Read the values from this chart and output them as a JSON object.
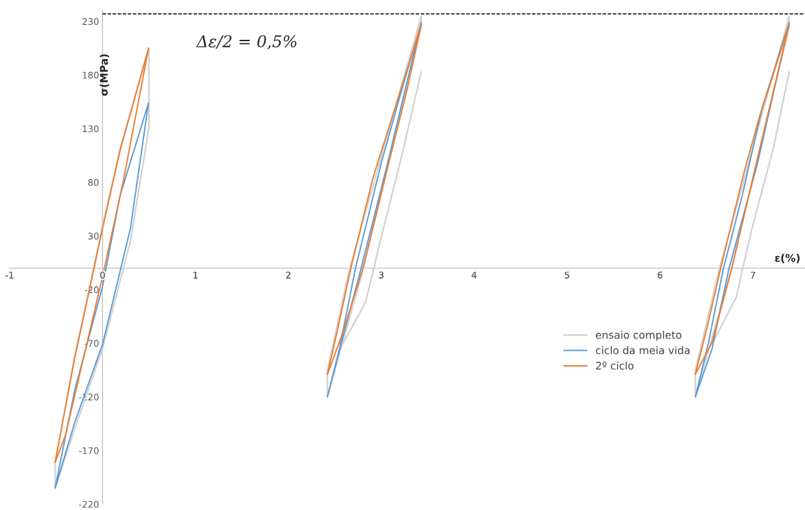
{
  "chart_data": {
    "type": "line",
    "xlabel": "ε(%)",
    "ylabel": "σ(MPa)",
    "annotations": [
      "Δε/2 = 0,5%"
    ],
    "xlim": [
      -1,
      7.56
    ],
    "ylim": [
      -220,
      240
    ],
    "xticks": [
      -1,
      0,
      1,
      2,
      3,
      4,
      5,
      6,
      7
    ],
    "yticks": [
      -220,
      -170,
      -120,
      -70,
      -20,
      30,
      80,
      130,
      180,
      230
    ],
    "ref_lines": [
      {
        "axis": "y",
        "value": 237,
        "color": "#000000",
        "line_style": "dashed"
      }
    ],
    "grid": false,
    "legend": "right",
    "marker": "none",
    "line_style": "solid",
    "series": [
      {
        "name": "ensaio completo",
        "color": "#d0d0d0",
        "x": [
          -0.51,
          -0.3,
          0,
          0.3,
          0.5,
          0.5,
          null,
          0.5,
          0.19,
          0,
          -0.17,
          -0.3,
          -0.51,
          -0.51,
          null,
          2.42,
          2.8,
          3.43,
          3.43,
          null,
          3.43,
          2.66,
          2.42,
          2.42,
          null,
          2.57,
          2.83,
          2.92,
          3.0,
          3.23,
          3.43,
          null,
          6.38,
          6.76,
          7.39,
          7.39,
          null,
          7.39,
          6.64,
          6.38,
          6.38,
          null,
          6.56,
          6.82,
          6.89,
          6.99,
          7.22,
          7.39
        ],
        "values": [
          -205,
          -150,
          -75,
          25,
          131,
          205,
          null,
          205,
          112,
          39,
          -30,
          -82,
          -181,
          -205,
          null,
          -120,
          -3,
          225,
          235,
          null,
          235,
          0,
          -95,
          -120,
          null,
          -73,
          -32,
          0,
          29,
          108,
          183,
          null,
          -120,
          -3,
          225,
          235,
          null,
          235,
          0,
          -95,
          -120,
          null,
          -71,
          -27,
          0,
          37,
          112,
          183
        ]
      },
      {
        "name": "ciclo da meia vida",
        "color": "#5b9bd5",
        "x": [
          -0.51,
          -0.3,
          0,
          0.3,
          0.495,
          null,
          0.495,
          0.19,
          0,
          -0.3,
          -0.51,
          null,
          2.42,
          2.57,
          2.78,
          3.06,
          3.43,
          null,
          3.43,
          3.2,
          3.0,
          2.72,
          2.55,
          2.42,
          null,
          6.38,
          6.56,
          6.74,
          7.05,
          7.39,
          null,
          7.39,
          7.1,
          6.88,
          6.68,
          6.52,
          6.38
        ],
        "values": [
          -205,
          -144,
          -71,
          37,
          154,
          null,
          154,
          68,
          -17,
          -114,
          -205,
          null,
          -120,
          -70,
          -1,
          95,
          229,
          null,
          229,
          160,
          98,
          -1,
          -75,
          -120,
          null,
          -120,
          -75,
          -1,
          98,
          229,
          null,
          229,
          150,
          66,
          -1,
          -70,
          -120
        ]
      },
      {
        "name": "2º ciclo",
        "color": "#ed7d31",
        "x": [
          -0.51,
          -0.4,
          0,
          0.23,
          0.495,
          null,
          0.495,
          0.19,
          0,
          -0.17,
          -0.3,
          -0.51,
          null,
          2.42,
          2.57,
          2.8,
          3.06,
          3.28,
          3.43,
          null,
          3.43,
          3.14,
          2.91,
          2.67,
          2.53,
          2.42,
          null,
          6.38,
          6.56,
          6.77,
          7.05,
          7.39,
          null,
          7.39,
          7.07,
          6.9,
          6.65,
          6.51,
          6.38
        ],
        "values": [
          -181,
          -156,
          -8,
          84,
          205,
          null,
          205,
          110,
          37,
          -32,
          -84,
          -181,
          null,
          -99,
          -64,
          -1,
          91,
          167,
          227,
          null,
          227,
          147,
          84,
          -1,
          -57,
          -99,
          null,
          -99,
          -69,
          -1,
          103,
          227,
          null,
          227,
          141,
          88,
          -1,
          -54,
          -99
        ]
      }
    ]
  }
}
